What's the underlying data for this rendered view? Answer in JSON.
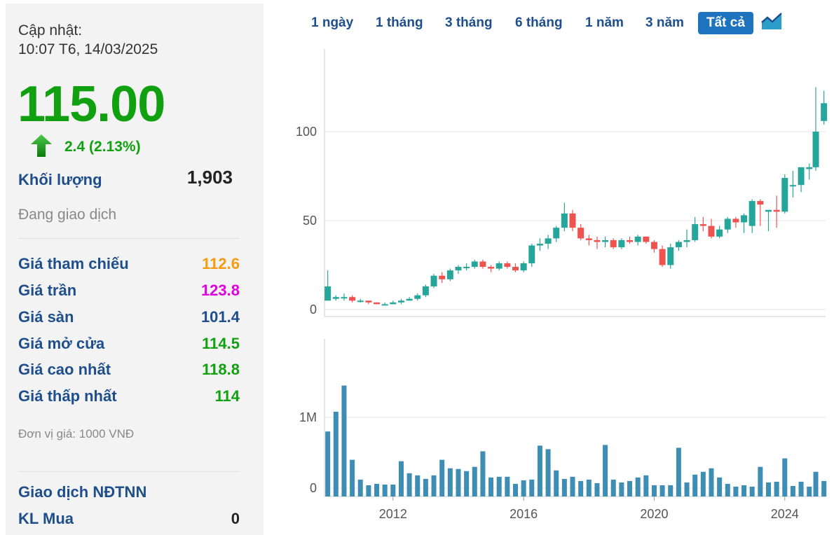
{
  "info": {
    "updated_label": "Cập nhật:",
    "updated_time": "10:07 T6, 14/03/2025",
    "price": "115.00",
    "change": "2.4 (2.13%)",
    "volume_label": "Khối lượng",
    "volume": "1,903",
    "status": "Đang giao dịch",
    "unit": "Đơn vị giá: 1000 VNĐ"
  },
  "prices": [
    {
      "label": "Giá tham chiếu",
      "value": "112.6",
      "color": "#f39c12"
    },
    {
      "label": "Giá trần",
      "value": "123.8",
      "color": "#e000e0"
    },
    {
      "label": "Giá sàn",
      "value": "101.4",
      "color": "#1e4f8c"
    },
    {
      "label": "Giá mở cửa",
      "value": "114.5",
      "color": "#10a010"
    },
    {
      "label": "Giá cao nhất",
      "value": "118.8",
      "color": "#10a010"
    },
    {
      "label": "Giá thấp nhất",
      "value": "114",
      "color": "#10a010"
    }
  ],
  "foreign": {
    "title": "Giao dịch NĐTNN",
    "buy_label": "KL Mua",
    "buy_value": "0"
  },
  "tabs": [
    "1 ngày",
    "1 tháng",
    "3 tháng",
    "6 tháng",
    "1 năm",
    "3 năm",
    "Tất cả"
  ],
  "active_tab": "Tất cả",
  "colors": {
    "up": "#26a69a",
    "down": "#ef5350",
    "volume": "#3d8db5",
    "accent": "#1e73be"
  },
  "chart_data": {
    "type": "candlestick",
    "x_ticks": [
      "2012",
      "2016",
      "2020",
      "2024"
    ],
    "price_ticks": [
      "0",
      "50",
      "100"
    ],
    "volume_ticks": [
      "0",
      "1M"
    ],
    "price_range": [
      0,
      150
    ],
    "volume_range": [
      0,
      1500000
    ],
    "x_range": [
      2009.9,
      2025.25
    ],
    "candles": [
      {
        "t": 2010.0,
        "o": 5,
        "h": 22,
        "l": 5,
        "c": 13
      },
      {
        "t": 2010.25,
        "o": 6,
        "h": 8,
        "l": 5,
        "c": 7
      },
      {
        "t": 2010.5,
        "o": 7,
        "h": 9,
        "l": 5,
        "c": 7
      },
      {
        "t": 2010.75,
        "o": 7,
        "h": 8,
        "l": 4,
        "c": 5
      },
      {
        "t": 2011.0,
        "o": 5,
        "h": 6,
        "l": 4,
        "c": 5
      },
      {
        "t": 2011.25,
        "o": 5,
        "h": 5,
        "l": 3,
        "c": 4
      },
      {
        "t": 2011.5,
        "o": 4,
        "h": 4,
        "l": 3,
        "c": 3
      },
      {
        "t": 2011.75,
        "o": 3,
        "h": 4,
        "l": 3,
        "c": 3
      },
      {
        "t": 2012.0,
        "o": 3,
        "h": 5,
        "l": 3,
        "c": 4
      },
      {
        "t": 2012.25,
        "o": 4,
        "h": 6,
        "l": 3,
        "c": 5
      },
      {
        "t": 2012.5,
        "o": 5,
        "h": 7,
        "l": 5,
        "c": 6
      },
      {
        "t": 2012.75,
        "o": 6,
        "h": 9,
        "l": 5,
        "c": 8
      },
      {
        "t": 2013.0,
        "o": 8,
        "h": 14,
        "l": 7,
        "c": 13
      },
      {
        "t": 2013.25,
        "o": 13,
        "h": 20,
        "l": 12,
        "c": 19
      },
      {
        "t": 2013.5,
        "o": 19,
        "h": 21,
        "l": 15,
        "c": 17
      },
      {
        "t": 2013.75,
        "o": 17,
        "h": 23,
        "l": 16,
        "c": 22
      },
      {
        "t": 2014.0,
        "o": 22,
        "h": 25,
        "l": 20,
        "c": 24
      },
      {
        "t": 2014.25,
        "o": 24,
        "h": 26,
        "l": 22,
        "c": 24
      },
      {
        "t": 2014.5,
        "o": 24,
        "h": 28,
        "l": 23,
        "c": 27
      },
      {
        "t": 2014.75,
        "o": 27,
        "h": 28,
        "l": 23,
        "c": 24
      },
      {
        "t": 2015.0,
        "o": 24,
        "h": 25,
        "l": 21,
        "c": 23
      },
      {
        "t": 2015.25,
        "o": 23,
        "h": 27,
        "l": 22,
        "c": 26
      },
      {
        "t": 2015.5,
        "o": 26,
        "h": 27,
        "l": 23,
        "c": 24
      },
      {
        "t": 2015.75,
        "o": 24,
        "h": 26,
        "l": 21,
        "c": 22
      },
      {
        "t": 2016.0,
        "o": 22,
        "h": 27,
        "l": 21,
        "c": 26
      },
      {
        "t": 2016.25,
        "o": 26,
        "h": 37,
        "l": 24,
        "c": 36
      },
      {
        "t": 2016.5,
        "o": 36,
        "h": 40,
        "l": 33,
        "c": 37
      },
      {
        "t": 2016.75,
        "o": 37,
        "h": 42,
        "l": 34,
        "c": 40
      },
      {
        "t": 2017.0,
        "o": 40,
        "h": 47,
        "l": 38,
        "c": 46
      },
      {
        "t": 2017.25,
        "o": 46,
        "h": 60,
        "l": 44,
        "c": 54
      },
      {
        "t": 2017.5,
        "o": 54,
        "h": 56,
        "l": 44,
        "c": 46
      },
      {
        "t": 2017.75,
        "o": 46,
        "h": 48,
        "l": 39,
        "c": 40
      },
      {
        "t": 2018.0,
        "o": 40,
        "h": 42,
        "l": 36,
        "c": 39
      },
      {
        "t": 2018.25,
        "o": 39,
        "h": 41,
        "l": 34,
        "c": 38
      },
      {
        "t": 2018.5,
        "o": 38,
        "h": 41,
        "l": 35,
        "c": 39
      },
      {
        "t": 2018.75,
        "o": 39,
        "h": 40,
        "l": 34,
        "c": 35
      },
      {
        "t": 2019.0,
        "o": 35,
        "h": 40,
        "l": 34,
        "c": 39
      },
      {
        "t": 2019.25,
        "o": 39,
        "h": 41,
        "l": 37,
        "c": 38
      },
      {
        "t": 2019.5,
        "o": 38,
        "h": 42,
        "l": 36,
        "c": 41
      },
      {
        "t": 2019.75,
        "o": 41,
        "h": 41,
        "l": 37,
        "c": 38
      },
      {
        "t": 2020.0,
        "o": 38,
        "h": 39,
        "l": 32,
        "c": 34
      },
      {
        "t": 2020.25,
        "o": 34,
        "h": 36,
        "l": 24,
        "c": 25
      },
      {
        "t": 2020.5,
        "o": 25,
        "h": 37,
        "l": 23,
        "c": 35
      },
      {
        "t": 2020.75,
        "o": 35,
        "h": 39,
        "l": 33,
        "c": 38
      },
      {
        "t": 2021.0,
        "o": 38,
        "h": 45,
        "l": 35,
        "c": 39
      },
      {
        "t": 2021.25,
        "o": 39,
        "h": 52,
        "l": 38,
        "c": 48
      },
      {
        "t": 2021.5,
        "o": 48,
        "h": 52,
        "l": 44,
        "c": 47
      },
      {
        "t": 2021.75,
        "o": 47,
        "h": 51,
        "l": 40,
        "c": 41
      },
      {
        "t": 2022.0,
        "o": 41,
        "h": 47,
        "l": 40,
        "c": 45
      },
      {
        "t": 2022.25,
        "o": 45,
        "h": 52,
        "l": 43,
        "c": 51
      },
      {
        "t": 2022.5,
        "o": 51,
        "h": 52,
        "l": 46,
        "c": 49
      },
      {
        "t": 2022.75,
        "o": 49,
        "h": 54,
        "l": 43,
        "c": 53
      },
      {
        "t": 2023.0,
        "o": 47,
        "h": 62,
        "l": 43,
        "c": 61
      },
      {
        "t": 2023.25,
        "o": 61,
        "h": 62,
        "l": 47,
        "c": 59
      },
      {
        "t": 2023.5,
        "o": 55,
        "h": 56,
        "l": 44,
        "c": 56
      },
      {
        "t": 2023.75,
        "o": 56,
        "h": 64,
        "l": 46,
        "c": 55
      },
      {
        "t": 2024.0,
        "o": 55,
        "h": 76,
        "l": 54,
        "c": 74
      },
      {
        "t": 2024.25,
        "o": 70,
        "h": 78,
        "l": 63,
        "c": 70
      },
      {
        "t": 2024.5,
        "o": 70,
        "h": 80,
        "l": 66,
        "c": 80
      },
      {
        "t": 2024.75,
        "o": 79,
        "h": 82,
        "l": 73,
        "c": 80
      },
      {
        "t": 2024.95,
        "o": 80,
        "h": 125,
        "l": 78,
        "c": 100
      },
      {
        "t": 2025.2,
        "o": 106,
        "h": 123,
        "l": 104,
        "c": 116
      }
    ],
    "volumes": [
      {
        "t": 2010.0,
        "v": 800000
      },
      {
        "t": 2010.25,
        "v": 1080000
      },
      {
        "t": 2010.5,
        "v": 1450000
      },
      {
        "t": 2010.75,
        "v": 400000
      },
      {
        "t": 2011.0,
        "v": 120000
      },
      {
        "t": 2011.25,
        "v": 40000
      },
      {
        "t": 2011.5,
        "v": 60000
      },
      {
        "t": 2011.75,
        "v": 50000
      },
      {
        "t": 2012.0,
        "v": 50000
      },
      {
        "t": 2012.25,
        "v": 380000
      },
      {
        "t": 2012.5,
        "v": 210000
      },
      {
        "t": 2012.75,
        "v": 180000
      },
      {
        "t": 2013.0,
        "v": 130000
      },
      {
        "t": 2013.25,
        "v": 180000
      },
      {
        "t": 2013.5,
        "v": 400000
      },
      {
        "t": 2013.75,
        "v": 280000
      },
      {
        "t": 2014.0,
        "v": 270000
      },
      {
        "t": 2014.25,
        "v": 240000
      },
      {
        "t": 2014.5,
        "v": 300000
      },
      {
        "t": 2014.75,
        "v": 520000
      },
      {
        "t": 2015.0,
        "v": 150000
      },
      {
        "t": 2015.25,
        "v": 160000
      },
      {
        "t": 2015.5,
        "v": 160000
      },
      {
        "t": 2015.75,
        "v": 60000
      },
      {
        "t": 2016.0,
        "v": 110000
      },
      {
        "t": 2016.25,
        "v": 120000
      },
      {
        "t": 2016.5,
        "v": 600000
      },
      {
        "t": 2016.75,
        "v": 550000
      },
      {
        "t": 2017.0,
        "v": 250000
      },
      {
        "t": 2017.25,
        "v": 130000
      },
      {
        "t": 2017.5,
        "v": 160000
      },
      {
        "t": 2017.75,
        "v": 100000
      },
      {
        "t": 2018.0,
        "v": 120000
      },
      {
        "t": 2018.25,
        "v": 70000
      },
      {
        "t": 2018.5,
        "v": 610000
      },
      {
        "t": 2018.75,
        "v": 120000
      },
      {
        "t": 2019.0,
        "v": 80000
      },
      {
        "t": 2019.25,
        "v": 100000
      },
      {
        "t": 2019.5,
        "v": 150000
      },
      {
        "t": 2019.75,
        "v": 180000
      },
      {
        "t": 2020.0,
        "v": 40000
      },
      {
        "t": 2020.25,
        "v": 40000
      },
      {
        "t": 2020.5,
        "v": 40000
      },
      {
        "t": 2020.75,
        "v": 570000
      },
      {
        "t": 2021.0,
        "v": 80000
      },
      {
        "t": 2021.25,
        "v": 190000
      },
      {
        "t": 2021.5,
        "v": 230000
      },
      {
        "t": 2021.75,
        "v": 280000
      },
      {
        "t": 2022.0,
        "v": 150000
      },
      {
        "t": 2022.25,
        "v": 60000
      },
      {
        "t": 2022.5,
        "v": 20000
      },
      {
        "t": 2022.75,
        "v": 40000
      },
      {
        "t": 2023.0,
        "v": 20000
      },
      {
        "t": 2023.25,
        "v": 300000
      },
      {
        "t": 2023.5,
        "v": 80000
      },
      {
        "t": 2023.75,
        "v": 90000
      },
      {
        "t": 2024.0,
        "v": 420000
      },
      {
        "t": 2024.25,
        "v": 30000
      },
      {
        "t": 2024.5,
        "v": 90000
      },
      {
        "t": 2024.75,
        "v": 20000
      },
      {
        "t": 2024.95,
        "v": 230000
      },
      {
        "t": 2025.2,
        "v": 100000
      }
    ]
  }
}
